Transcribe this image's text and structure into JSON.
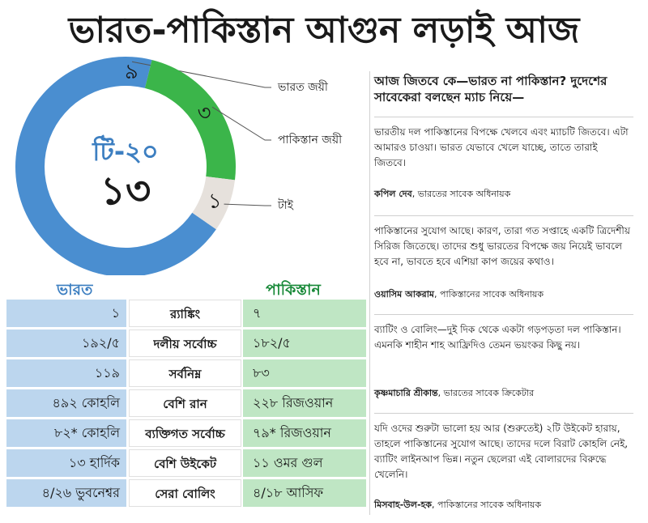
{
  "title": "ভারত-পাকিস্তান আগুন লড়াই আজ",
  "chart_data": {
    "type": "pie",
    "donut": true,
    "center_label": "টি-২০",
    "center_value": "১৩",
    "slices": [
      {
        "label": "ভারত জয়ী",
        "value": 9,
        "display": "৯",
        "color": "#4a8ed0"
      },
      {
        "label": "পাকিস্তান জয়ী",
        "value": 3,
        "display": "৩",
        "color": "#3bb54a"
      },
      {
        "label": "টাই",
        "value": 1,
        "display": "১",
        "color": "#e6e1dc"
      }
    ]
  },
  "teams": {
    "india": "ভারত",
    "pakistan": "পাকিস্তান"
  },
  "stats": [
    {
      "label": "র‍্যাঙ্কিং",
      "india": "১",
      "pakistan": "৭"
    },
    {
      "label": "দলীয় সর্বোচ্চ",
      "india": "১৯২/৫",
      "pakistan": "১৮২/৫"
    },
    {
      "label": "সর্বনিম্ন",
      "india": "১১৯",
      "pakistan": "৮৩"
    },
    {
      "label": "বেশি রান",
      "india": "৪৯২ কোহলি",
      "pakistan": "২২৮ রিজওয়ান"
    },
    {
      "label": "ব্যক্তিগত সর্বোচ্চ",
      "india": "৮২* কোহলি",
      "pakistan": "৭৯* রিজওয়ান"
    },
    {
      "label": "বেশি উইকেট",
      "india": "১৩ হার্দিক",
      "pakistan": "১১ ওমর গুল"
    },
    {
      "label": "সেরা বোলিং",
      "india": "৪/২৬ ভুবনেশ্বর",
      "pakistan": "৪/১৮ আসিফ"
    }
  ],
  "quotes_heading": "আজ জিতবে কে—ভারত না পাকিস্তান? দুদেশের সাবেকেরা বলছেন ম্যাচ নিয়ে—",
  "quotes": [
    {
      "text": "ভারতীয় দল পাকিস্তানের বিপক্ষে খেলবে এবং ম্যাচটি জিতবে। এটা আমারও চাওয়া। ভারত যেভাবে খেলে যাচ্ছে, তাতে তারাই জিতবে।",
      "name": "কপিল দেব",
      "role": ", ভারতের সাবেক অধিনায়ক"
    },
    {
      "text": "পাকিস্তানের সুযোগ আছে। কারণ, তারা গত সপ্তাহে একটি ত্রিদেশীয় সিরিজ জিতেছে। তাদের শুধু ভারতের বিপক্ষে জয় নিয়েই ভাবলে হবে না, ভাবতে হবে এশিয়া কাপ জয়ের কথাও।",
      "name": "ওয়াসিম আকরাম",
      "role": ", পাকিস্তানের সাবেক অধিনায়ক"
    },
    {
      "text": "ব্যাটিং ও বোলিং—দুই দিক থেকে একটা গড়পড়তা দল পাকিস্তান। এমনকি শাহীন শাহ আফ্রিদিও তেমন ভয়ংকর কিছু নয়।",
      "name": "কৃষ্ণমাচারি শ্রীকান্ত",
      "role": ", ভারতের সাবেক ক্রিকেটার"
    },
    {
      "text": "যদি ওদের শুরুটা ভালো হয় আর (শুরুতেই) ২টি উইকেট হারায়, তাহলে পাকিস্তানের সুযোগ আছে। তাদের দলে বিরাট কোহলি নেই, ব্যাটিং লাইনআপ ভিন্ন। নতুন ছেলেরা এই বোলারদের বিরুদ্ধে খেলেনি।",
      "name": "মিসবাহ-উল-হক",
      "role": ", পাকিস্তানের সাবেক অধিনায়ক"
    }
  ]
}
